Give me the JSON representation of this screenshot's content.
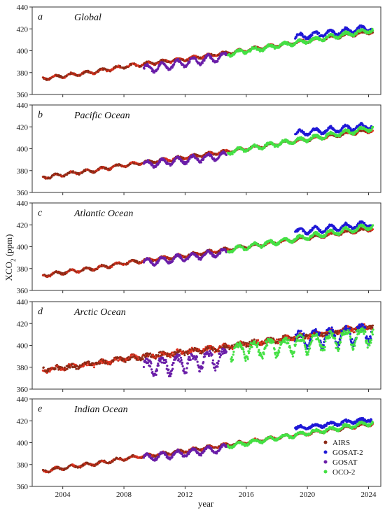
{
  "chart_data": {
    "type": "scatter",
    "xlabel": "year",
    "ylabel": "XCO2 (ppm)",
    "ylabel_parts": {
      "base": "XCO",
      "sub": "2",
      "rest": " (ppm)"
    },
    "xlim": [
      2002,
      2024.8
    ],
    "ylim": [
      360,
      440
    ],
    "xticks": [
      2004,
      2008,
      2012,
      2016,
      2020,
      2024
    ],
    "yticks": [
      360,
      380,
      400,
      420,
      440
    ],
    "legend": {
      "placement": "bottom-right",
      "panel": "e"
    },
    "series": [
      {
        "name": "AIRS",
        "color": "#8b2a16"
      },
      {
        "name": "GOSAT-2",
        "color": "#1f18d6"
      },
      {
        "name": "GOSAT",
        "color": "#6a1ea8"
      },
      {
        "name": "OCO-2",
        "color": "#44e044"
      }
    ],
    "panels": [
      {
        "id": "a",
        "label": "a",
        "title": "Global",
        "AIRS": [
          [
            2002.7,
            374.5
          ],
          [
            2004,
            377
          ],
          [
            2006,
            380.5
          ],
          [
            2008,
            385.5
          ],
          [
            2010,
            389
          ],
          [
            2012,
            392.5
          ],
          [
            2014,
            396.5
          ],
          [
            2016,
            400.5
          ],
          [
            2018,
            405
          ],
          [
            2020,
            409
          ],
          [
            2022,
            413
          ],
          [
            2024.3,
            417.5
          ]
        ],
        "GOSAT": {
          "start": 2009.3,
          "end": 2014.7,
          "base": [
            [
              2009.3,
              383
            ],
            [
              2014.7,
              395
            ]
          ],
          "amp": 3.5
        },
        "OCO-2": {
          "start": 2014.8,
          "end": 2024.3,
          "base": [
            [
              2014.8,
              397
            ],
            [
              2024.3,
              419
            ]
          ],
          "amp": 1.8
        },
        "GOSAT-2": {
          "start": 2019.2,
          "end": 2024.2,
          "base": [
            [
              2019.2,
              412.5
            ],
            [
              2024.2,
              421
            ]
          ],
          "amp": 2.5
        }
      },
      {
        "id": "b",
        "label": "b",
        "title": "Pacific Ocean",
        "AIRS": [
          [
            2002.7,
            373.5
          ],
          [
            2004,
            376.5
          ],
          [
            2006,
            380
          ],
          [
            2008,
            385
          ],
          [
            2010,
            388.5
          ],
          [
            2012,
            392
          ],
          [
            2014,
            396
          ],
          [
            2016,
            400
          ],
          [
            2018,
            404.5
          ],
          [
            2020,
            408.5
          ],
          [
            2022,
            412.5
          ],
          [
            2024.3,
            417
          ]
        ],
        "GOSAT": {
          "start": 2009.3,
          "end": 2014.7,
          "base": [
            [
              2009.3,
              385.5
            ],
            [
              2014.7,
              394
            ]
          ],
          "amp": 3
        },
        "OCO-2": {
          "start": 2014.8,
          "end": 2024.3,
          "base": [
            [
              2014.8,
              397
            ],
            [
              2024.3,
              419
            ]
          ],
          "amp": 2
        },
        "GOSAT-2": {
          "start": 2019.2,
          "end": 2024.2,
          "base": [
            [
              2019.2,
              414
            ],
            [
              2024.2,
              421
            ]
          ],
          "amp": 2.5
        }
      },
      {
        "id": "c",
        "label": "c",
        "title": "Atlantic Ocean",
        "AIRS": [
          [
            2002.7,
            373.5
          ],
          [
            2004,
            376.5
          ],
          [
            2006,
            380
          ],
          [
            2008,
            385
          ],
          [
            2010,
            388.5
          ],
          [
            2012,
            392
          ],
          [
            2014,
            396
          ],
          [
            2016,
            400
          ],
          [
            2018,
            404
          ],
          [
            2020,
            408
          ],
          [
            2022,
            412
          ],
          [
            2024.3,
            416.5
          ]
        ],
        "GOSAT": {
          "start": 2009.3,
          "end": 2014.7,
          "base": [
            [
              2009.3,
              385.5
            ],
            [
              2014.7,
              395
            ]
          ],
          "amp": 3
        },
        "OCO-2": {
          "start": 2014.8,
          "end": 2024.3,
          "base": [
            [
              2014.8,
              397
            ],
            [
              2024.3,
              419
            ]
          ],
          "amp": 2.2
        },
        "GOSAT-2": {
          "start": 2019.2,
          "end": 2024.2,
          "base": [
            [
              2019.2,
              413.5
            ],
            [
              2024.2,
              421
            ]
          ],
          "amp": 2.5
        }
      },
      {
        "id": "d",
        "label": "d",
        "title": "Arctic Ocean",
        "AIRS": [
          [
            2002.7,
            377.5
          ],
          [
            2004,
            379.5
          ],
          [
            2006,
            383
          ],
          [
            2008,
            387.5
          ],
          [
            2010,
            391
          ],
          [
            2012,
            394
          ],
          [
            2014,
            397
          ],
          [
            2016,
            401.5
          ],
          [
            2018,
            405
          ],
          [
            2020,
            409
          ],
          [
            2022,
            413
          ],
          [
            2024.3,
            418
          ]
        ],
        "GOSAT": {
          "start": 2009.3,
          "end": 2014.7,
          "base": [
            [
              2009.3,
              382
            ],
            [
              2014.7,
              392
            ]
          ],
          "amp": 7
        },
        "OCO-2": {
          "start": 2015,
          "end": 2024.3,
          "base": [
            [
              2015,
              397
            ],
            [
              2024.3,
              412
            ]
          ],
          "amp": 7
        },
        "GOSAT-2": {
          "start": 2019.2,
          "end": 2024.2,
          "base": [
            [
              2019.2,
              408
            ],
            [
              2024.2,
              415
            ]
          ],
          "amp": 7
        }
      },
      {
        "id": "e",
        "label": "e",
        "title": "Indian Ocean",
        "AIRS": [
          [
            2002.7,
            374
          ],
          [
            2004,
            377
          ],
          [
            2006,
            380.5
          ],
          [
            2008,
            385.5
          ],
          [
            2010,
            389
          ],
          [
            2012,
            392.5
          ],
          [
            2014,
            396.5
          ],
          [
            2016,
            400.5
          ],
          [
            2018,
            404.5
          ],
          [
            2020,
            408.5
          ],
          [
            2022,
            412.5
          ],
          [
            2024.3,
            417.5
          ]
        ],
        "GOSAT": {
          "start": 2009.3,
          "end": 2014.7,
          "base": [
            [
              2009.3,
              386
            ],
            [
              2014.7,
              395
            ]
          ],
          "amp": 3
        },
        "OCO-2": {
          "start": 2014.8,
          "end": 2024.3,
          "base": [
            [
              2014.8,
              397
            ],
            [
              2024.3,
              418.5
            ]
          ],
          "amp": 1.8
        },
        "GOSAT-2": {
          "start": 2019.2,
          "end": 2024.2,
          "base": [
            [
              2019.2,
              413
            ],
            [
              2024.2,
              421.5
            ]
          ],
          "amp": 1.5
        }
      }
    ]
  }
}
